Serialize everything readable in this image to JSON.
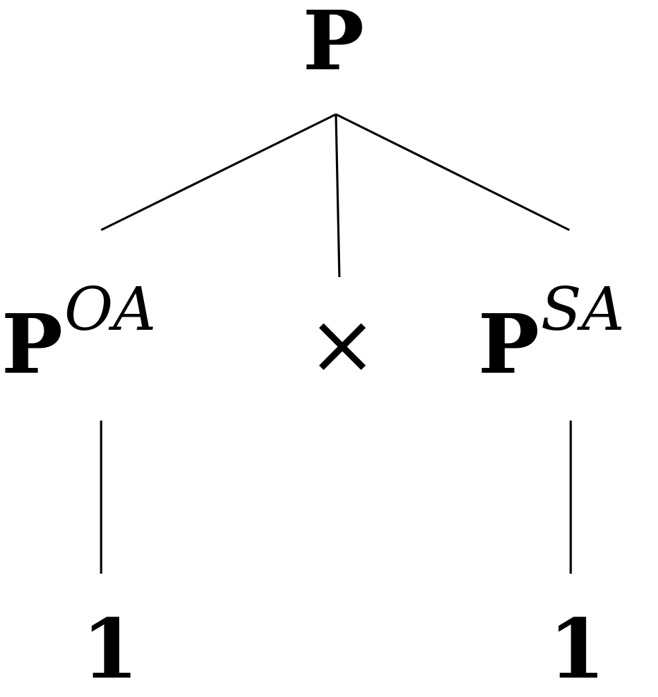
{
  "tree": {
    "root": {
      "label": "P"
    },
    "children": [
      {
        "label": "P",
        "superscript": "OA",
        "child": {
          "label": "1"
        }
      },
      {
        "label": "×"
      },
      {
        "label": "P",
        "superscript": "SA",
        "child": {
          "label": "1"
        }
      }
    ]
  },
  "colors": {
    "ink": "#000000",
    "background": "#ffffff"
  }
}
